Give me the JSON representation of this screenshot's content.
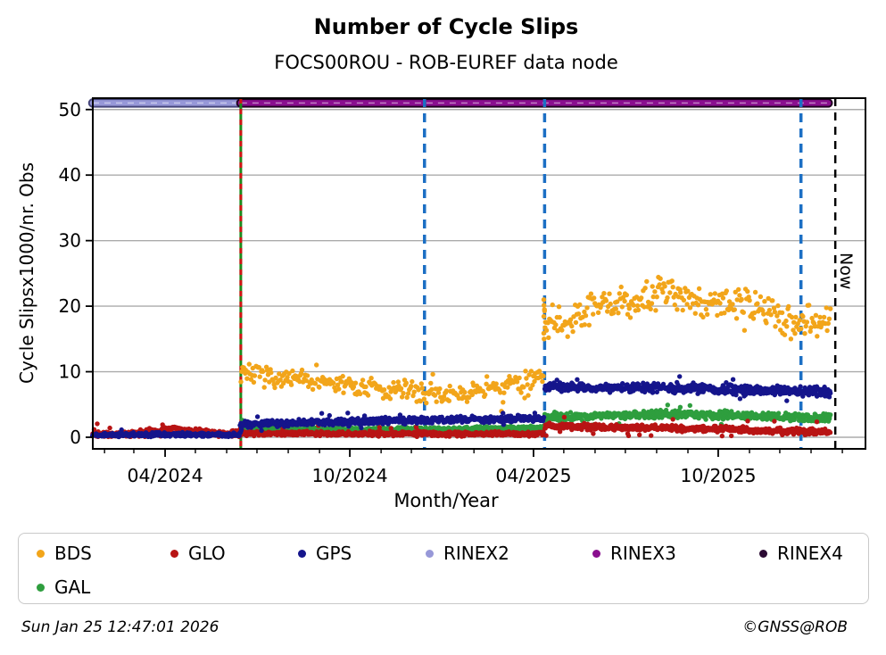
{
  "title": "Number of Cycle Slips",
  "subtitle": "FOCS00ROU - ROB-EUREF data node",
  "footer": {
    "timestamp": "Sun Jan 25 12:47:01 2026",
    "credit": "©GNSS@ROB"
  },
  "chart_data": {
    "type": "scatter",
    "title": "Number of Cycle Slips",
    "subtitle": "FOCS00ROU - ROB-EUREF data node",
    "xlabel": "Month/Year",
    "ylabel": "Cycle Slipsx1000/nr. Obs",
    "x_range": [
      "2024-01-20",
      "2026-02-24"
    ],
    "ylim": [
      -1.8,
      51.7
    ],
    "yticks": [
      0,
      10,
      20,
      30,
      40,
      50
    ],
    "xtick_major_labels": [
      "04/2024",
      "10/2024",
      "04/2025",
      "10/2025"
    ],
    "xtick_minor": "monthly",
    "grid": {
      "horizontal": true,
      "color": "#ABABAB"
    },
    "legend": {
      "position": "bottom",
      "entries": [
        {
          "label": "BDS",
          "color": "#F2A51A"
        },
        {
          "label": "GLO",
          "color": "#B81414"
        },
        {
          "label": "GPS",
          "color": "#15158C"
        },
        {
          "label": "RINEX2",
          "color": "#9798D8"
        },
        {
          "label": "RINEX3",
          "color": "#8A0F8F"
        },
        {
          "label": "RINEX4",
          "color": "#2B0A33"
        },
        {
          "label": "GAL",
          "color": "#2E9E3E"
        }
      ]
    },
    "now_line": {
      "date": "2026-01-25",
      "label": "Now",
      "color": "#000000",
      "style": "dashed"
    },
    "event_lines": [
      {
        "date": "2024-06-15",
        "type": "green-red-dashed",
        "green": "#1C8A1C",
        "red": "#D11414"
      },
      {
        "date": "2024-12-14",
        "type": "dashed",
        "color": "#1C6FC4"
      },
      {
        "date": "2025-04-12",
        "type": "dashed",
        "color": "#1C6FC4"
      },
      {
        "date": "2025-12-22",
        "type": "dashed",
        "color": "#1C6FC4"
      }
    ],
    "rinex_bands": [
      {
        "name": "RINEX2",
        "value": 51,
        "start": "2024-01-20",
        "end": "2024-06-15",
        "color": "#9798D8",
        "edge": "#44447A"
      },
      {
        "name": "RINEX3",
        "value": 51,
        "start": "2024-06-15",
        "end": "2026-01-18",
        "color": "#8A0F8F",
        "edge": "#200020"
      }
    ],
    "series": [
      {
        "name": "BDS",
        "color": "#F2A51A",
        "points_per_day": 1,
        "segments": [
          {
            "start": "2024-06-15",
            "end": "2025-04-11",
            "spread": 1.35,
            "outlier_rate": 0.05,
            "outlier_mag": 2.3,
            "min": 3.9,
            "mean_anchors": [
              [
                "2024-06-15",
                10.2
              ],
              [
                "2024-07-15",
                9.2
              ],
              [
                "2024-08-20",
                8.5
              ],
              [
                "2024-10-01",
                7.8
              ],
              [
                "2024-11-10",
                7.0
              ],
              [
                "2024-12-14",
                6.9
              ],
              [
                "2025-01-20",
                6.6
              ],
              [
                "2025-02-20",
                7.3
              ],
              [
                "2025-03-20",
                8.4
              ],
              [
                "2025-04-11",
                9.4
              ]
            ]
          },
          {
            "start": "2025-04-12",
            "end": "2026-01-20",
            "spread": 2.2,
            "outlier_rate": 0.05,
            "outlier_mag": 2.6,
            "min": 12.5,
            "mean_anchors": [
              [
                "2025-04-12",
                18.0
              ],
              [
                "2025-05-01",
                17.3
              ],
              [
                "2025-05-25",
                19.6
              ],
              [
                "2025-06-20",
                20.6
              ],
              [
                "2025-07-15",
                21.2
              ],
              [
                "2025-08-20",
                22.3
              ],
              [
                "2025-09-15",
                21.0
              ],
              [
                "2025-10-05",
                20.1
              ],
              [
                "2025-10-25",
                20.6
              ],
              [
                "2025-11-15",
                19.2
              ],
              [
                "2025-12-10",
                18.0
              ],
              [
                "2025-12-25",
                17.4
              ],
              [
                "2026-01-20",
                17.6
              ]
            ]
          }
        ],
        "bursts": [
          {
            "date": "2025-04-12",
            "count": 8,
            "min": 15,
            "max": 21
          }
        ]
      },
      {
        "name": "GAL",
        "color": "#2E9E3E",
        "points_per_day": 2,
        "segments": [
          {
            "start": "2024-06-16",
            "end": "2025-04-11",
            "spread": 0.32,
            "outlier_rate": 0.02,
            "outlier_mag": 0.9,
            "min": 0.3,
            "mean_anchors": [
              [
                "2024-06-16",
                1.45
              ],
              [
                "2024-08-01",
                1.2
              ],
              [
                "2024-12-01",
                1.15
              ],
              [
                "2025-04-11",
                1.4
              ]
            ]
          },
          {
            "start": "2025-04-12",
            "end": "2026-01-20",
            "spread": 0.5,
            "outlier_rate": 0.02,
            "outlier_mag": 1.2,
            "min": 1.8,
            "mean_anchors": [
              [
                "2025-04-12",
                3.0
              ],
              [
                "2025-06-15",
                3.3
              ],
              [
                "2025-08-15",
                3.5
              ],
              [
                "2025-10-15",
                3.3
              ],
              [
                "2025-12-15",
                3.1
              ],
              [
                "2026-01-20",
                3.0
              ]
            ]
          }
        ],
        "bursts": [
          {
            "date": "2024-06-16",
            "count": 1,
            "min": 2.5,
            "max": 2.7
          }
        ]
      },
      {
        "name": "GLO",
        "color": "#B81414",
        "points_per_day": 2,
        "segments": [
          {
            "start": "2024-01-20",
            "end": "2024-06-14",
            "spread": 0.36,
            "outlier_rate": 0.05,
            "outlier_mag": 1.1,
            "min": 0.08,
            "mean_anchors": [
              [
                "2024-01-20",
                0.45
              ],
              [
                "2024-02-25",
                0.55
              ],
              [
                "2024-03-15",
                0.85
              ],
              [
                "2024-04-01",
                1.05
              ],
              [
                "2024-04-10",
                1.35
              ],
              [
                "2024-04-18",
                0.95
              ],
              [
                "2024-05-05",
                0.85
              ],
              [
                "2024-05-20",
                0.65
              ],
              [
                "2024-06-14",
                0.55
              ]
            ]
          },
          {
            "start": "2024-06-15",
            "end": "2025-04-11",
            "spread": 0.28,
            "outlier_rate": 0.03,
            "outlier_mag": 0.8,
            "min": 0.08,
            "mean_anchors": [
              [
                "2024-06-15",
                0.6
              ],
              [
                "2025-04-11",
                0.5
              ]
            ]
          },
          {
            "start": "2025-04-12",
            "end": "2026-01-20",
            "spread": 0.4,
            "outlier_rate": 0.03,
            "outlier_mag": 1.3,
            "min": 0.15,
            "mean_anchors": [
              [
                "2025-04-12",
                1.7
              ],
              [
                "2025-06-01",
                1.6
              ],
              [
                "2025-08-01",
                1.45
              ],
              [
                "2025-10-01",
                1.25
              ],
              [
                "2025-12-01",
                1.0
              ],
              [
                "2026-01-20",
                0.8
              ]
            ]
          }
        ],
        "bursts": [
          {
            "date": "2024-06-15",
            "count": 5,
            "min": 0.4,
            "max": 1.6
          }
        ]
      },
      {
        "name": "GPS",
        "color": "#15158C",
        "points_per_day": 2,
        "segments": [
          {
            "start": "2024-01-20",
            "end": "2024-06-14",
            "spread": 0.26,
            "outlier_rate": 0.02,
            "outlier_mag": 0.5,
            "min": 0.05,
            "mean_anchors": [
              [
                "2024-01-20",
                0.3
              ],
              [
                "2024-03-10",
                0.4
              ],
              [
                "2024-04-15",
                0.45
              ],
              [
                "2024-06-14",
                0.35
              ]
            ]
          },
          {
            "start": "2024-06-15",
            "end": "2025-04-11",
            "spread": 0.42,
            "outlier_rate": 0.03,
            "outlier_mag": 0.9,
            "min": 1.0,
            "mean_anchors": [
              [
                "2024-06-15",
                1.95
              ],
              [
                "2024-09-01",
                2.3
              ],
              [
                "2024-12-01",
                2.6
              ],
              [
                "2025-02-01",
                2.7
              ],
              [
                "2025-04-11",
                2.9
              ]
            ]
          },
          {
            "start": "2025-04-12",
            "end": "2026-01-20",
            "spread": 0.6,
            "outlier_rate": 0.02,
            "outlier_mag": 1.1,
            "min": 5.5,
            "mean_anchors": [
              [
                "2025-04-12",
                7.7
              ],
              [
                "2025-06-01",
                7.6
              ],
              [
                "2025-08-01",
                7.5
              ],
              [
                "2025-10-01",
                7.3
              ],
              [
                "2025-12-01",
                7.1
              ],
              [
                "2026-01-20",
                6.9
              ]
            ]
          }
        ],
        "bursts": [
          {
            "date": "2024-06-15",
            "count": 6,
            "min": 0.7,
            "max": 2.1
          }
        ]
      }
    ]
  }
}
